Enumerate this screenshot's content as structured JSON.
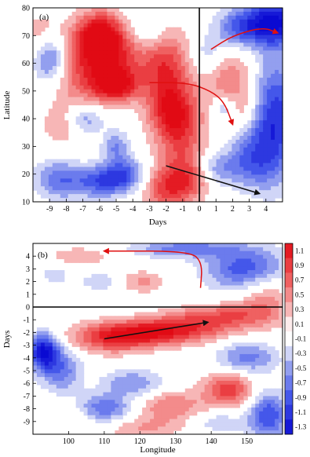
{
  "chart_data": [
    {
      "type": "heatmap",
      "panel_label": "(a)",
      "xlabel": "Days",
      "ylabel": "Latitude",
      "xticks": [
        -9,
        -8,
        -7,
        -6,
        -5,
        -4,
        -3,
        -2,
        -1,
        0,
        1,
        2,
        3,
        4
      ],
      "yticks": [
        10,
        20,
        30,
        40,
        50,
        60,
        70,
        80
      ],
      "xlim": [
        -10,
        5
      ],
      "ylim": [
        10,
        80
      ],
      "reference_line": {
        "axis": "x",
        "value": 0
      },
      "blobs": [
        {
          "x": -6.0,
          "y": 70,
          "sx": 1.0,
          "sy": 6,
          "v": 1.2
        },
        {
          "x": -5.0,
          "y": 62,
          "sx": 1.5,
          "sy": 8,
          "v": 0.8
        },
        {
          "x": -5.0,
          "y": 52,
          "sx": 0.9,
          "sy": 4,
          "v": 1.1
        },
        {
          "x": -7.0,
          "y": 56,
          "sx": 1.3,
          "sy": 10,
          "v": 0.6
        },
        {
          "x": -2.0,
          "y": 58,
          "sx": 1.0,
          "sy": 12,
          "v": 0.9
        },
        {
          "x": -1.5,
          "y": 42,
          "sx": 1.0,
          "sy": 7,
          "v": 0.9
        },
        {
          "x": -1.0,
          "y": 30,
          "sx": 1.0,
          "sy": 8,
          "v": 0.6
        },
        {
          "x": -2.0,
          "y": 15,
          "sx": 1.0,
          "sy": 6,
          "v": 0.9
        },
        {
          "x": -0.5,
          "y": 18,
          "sx": 0.8,
          "sy": 5,
          "v": 0.6
        },
        {
          "x": 1.5,
          "y": 56,
          "sx": 1.3,
          "sy": 7,
          "v": 0.6
        },
        {
          "x": 2.5,
          "y": 44,
          "sx": 1.0,
          "sy": 5,
          "v": 0.4
        },
        {
          "x": -8.2,
          "y": 38,
          "sx": 0.8,
          "sy": 5,
          "v": 0.5
        },
        {
          "x": -9.5,
          "y": 70,
          "sx": 0.8,
          "sy": 6,
          "v": 0.4
        },
        {
          "x": -9.0,
          "y": 62,
          "sx": 0.7,
          "sy": 6,
          "v": -0.9
        },
        {
          "x": -7.0,
          "y": 40,
          "sx": 0.9,
          "sy": 4,
          "v": -0.7
        },
        {
          "x": -5.0,
          "y": 30,
          "sx": 0.6,
          "sy": 4,
          "v": -0.6
        },
        {
          "x": -4.5,
          "y": 20,
          "sx": 1.0,
          "sy": 4,
          "v": -0.8
        },
        {
          "x": -6.0,
          "y": 17,
          "sx": 1.2,
          "sy": 4,
          "v": -0.8
        },
        {
          "x": -8.5,
          "y": 18,
          "sx": 1.0,
          "sy": 5,
          "v": -0.7
        },
        {
          "x": -3.0,
          "y": 72,
          "sx": 1.0,
          "sy": 6,
          "v": -0.5
        },
        {
          "x": 4.5,
          "y": 75,
          "sx": 1.0,
          "sy": 6,
          "v": -1.4
        },
        {
          "x": 2.5,
          "y": 73,
          "sx": 1.0,
          "sy": 5,
          "v": -0.9
        },
        {
          "x": 4.5,
          "y": 40,
          "sx": 1.0,
          "sy": 15,
          "v": -1.2
        },
        {
          "x": 3.0,
          "y": 25,
          "sx": 1.0,
          "sy": 7,
          "v": -0.7
        },
        {
          "x": 1.5,
          "y": 44,
          "sx": 0.5,
          "sy": 3,
          "v": -0.6
        },
        {
          "x": 0.5,
          "y": 62,
          "sx": 0.8,
          "sy": 6,
          "v": -0.5
        },
        {
          "x": 1.0,
          "y": 22,
          "sx": 0.9,
          "sy": 4,
          "v": -0.5
        }
      ],
      "arrows": [
        {
          "color": "red",
          "points": [
            [
              0.7,
              65
            ],
            [
              2.0,
              70
            ],
            [
              3.8,
              73
            ],
            [
              4.7,
              71
            ]
          ]
        },
        {
          "color": "red",
          "points": [
            [
              -3.0,
              53
            ],
            [
              -0.7,
              53
            ],
            [
              0.7,
              50
            ],
            [
              1.5,
              46
            ],
            [
              2.0,
              38
            ]
          ]
        },
        {
          "color": "black",
          "points": [
            [
              -2.0,
              23
            ],
            [
              3.6,
              13
            ]
          ]
        }
      ]
    },
    {
      "type": "heatmap",
      "panel_label": "(b)",
      "xlabel": "Longitude",
      "ylabel": "Days",
      "xticks": [
        100,
        110,
        120,
        130,
        140,
        150
      ],
      "yticks": [
        4,
        3,
        2,
        1,
        0,
        -1,
        -2,
        -3,
        -4,
        -5,
        -6,
        -7,
        -8,
        -9
      ],
      "xlim": [
        90,
        160
      ],
      "ylim": [
        -10,
        5
      ],
      "reference_line": {
        "axis": "y",
        "value": 0
      },
      "colorbar": {
        "ticks": [
          1.1,
          0.9,
          0.7,
          0.5,
          0.3,
          0.1,
          -0.1,
          -0.3,
          -0.5,
          -0.7,
          -0.9,
          -1.1,
          -1.3
        ],
        "range": [
          -1.4,
          1.2
        ]
      },
      "blobs": [
        {
          "x": 124,
          "y": -2.0,
          "sx": 12,
          "sy": 0.7,
          "v": 1.1
        },
        {
          "x": 112,
          "y": -2.6,
          "sx": 8,
          "sy": 0.8,
          "v": 0.7
        },
        {
          "x": 138,
          "y": -1.0,
          "sx": 10,
          "sy": 0.7,
          "v": 0.6
        },
        {
          "x": 148,
          "y": -0.5,
          "sx": 8,
          "sy": 0.7,
          "v": 0.4
        },
        {
          "x": 145,
          "y": -6.5,
          "sx": 5,
          "sy": 1.0,
          "v": 0.9
        },
        {
          "x": 128,
          "y": -7.8,
          "sx": 7,
          "sy": 0.9,
          "v": 0.6
        },
        {
          "x": 120,
          "y": 2.0,
          "sx": 5,
          "sy": 0.6,
          "v": 0.5
        },
        {
          "x": 103,
          "y": 4.0,
          "sx": 6,
          "sy": 0.5,
          "v": 0.4
        },
        {
          "x": 155,
          "y": 1.0,
          "sx": 5,
          "sy": 1.5,
          "v": 0.5
        },
        {
          "x": 100,
          "y": -8.5,
          "sx": 5,
          "sy": 0.8,
          "v": 0.3
        },
        {
          "x": 120,
          "y": -9.5,
          "sx": 8,
          "sy": 0.6,
          "v": 0.4
        },
        {
          "x": 93,
          "y": -3.5,
          "sx": 3,
          "sy": 1.0,
          "v": -1.4
        },
        {
          "x": 98,
          "y": -5.0,
          "sx": 4,
          "sy": 1.2,
          "v": -0.7
        },
        {
          "x": 118,
          "y": -6.0,
          "sx": 6,
          "sy": 0.8,
          "v": -0.6
        },
        {
          "x": 110,
          "y": -8.0,
          "sx": 6,
          "sy": 0.8,
          "v": -0.8
        },
        {
          "x": 150,
          "y": -4.0,
          "sx": 6,
          "sy": 0.9,
          "v": -0.7
        },
        {
          "x": 156,
          "y": -8.5,
          "sx": 4,
          "sy": 1.3,
          "v": -1.0
        },
        {
          "x": 150,
          "y": 3.0,
          "sx": 8,
          "sy": 1.2,
          "v": -1.0
        },
        {
          "x": 132,
          "y": 4.6,
          "sx": 10,
          "sy": 0.5,
          "v": -0.7
        },
        {
          "x": 110,
          "y": 2.0,
          "sx": 5,
          "sy": 0.5,
          "v": -0.4
        },
        {
          "x": 96,
          "y": 2.5,
          "sx": 3,
          "sy": 0.6,
          "v": -0.3
        },
        {
          "x": 142,
          "y": -9.0,
          "sx": 5,
          "sy": 0.6,
          "v": -0.4
        }
      ],
      "arrows": [
        {
          "color": "red",
          "points": [
            [
              137,
              1.5
            ],
            [
              137.5,
              3.5
            ],
            [
              134,
              4.4
            ],
            [
              110,
              4.4
            ]
          ]
        },
        {
          "color": "black",
          "points": [
            [
              110,
              -2.5
            ],
            [
              139,
              -1.2
            ]
          ]
        }
      ]
    }
  ]
}
